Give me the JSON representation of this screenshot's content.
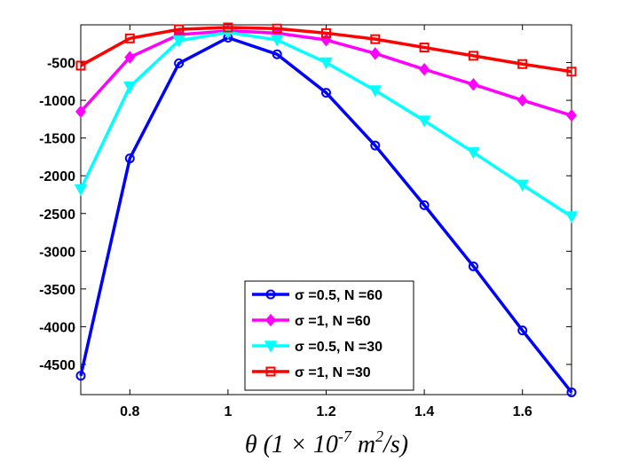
{
  "chart_data": {
    "type": "line",
    "xlabel": "θ (1 × 10",
    "xlabel_exp": "-7",
    "xlabel_mid": " m",
    "xlabel_exp2": "2",
    "xlabel_end": "/s)",
    "xlim": [
      0.7,
      1.7
    ],
    "ylim": [
      -4900,
      0
    ],
    "x_ticks": [
      "0.8",
      "1",
      "1.2",
      "1.4",
      "1.6"
    ],
    "x_tick_values": [
      0.8,
      1.0,
      1.2,
      1.4,
      1.6
    ],
    "y_ticks": [
      "-500",
      "-1000",
      "-1500",
      "-2000",
      "-2500",
      "-3000",
      "-3500",
      "-4000",
      "-4500"
    ],
    "y_tick_values": [
      -500,
      -1000,
      -1500,
      -2000,
      -2500,
      -3000,
      -3500,
      -4000,
      -4500
    ],
    "grid": false,
    "legend_position": "bottom-center",
    "x": [
      0.7,
      0.8,
      0.9,
      1.0,
      1.1,
      1.2,
      1.3,
      1.4,
      1.5,
      1.6,
      1.7
    ],
    "series": [
      {
        "name": "σ =0.5, N =60",
        "color": "#0000ff",
        "marker": "circle",
        "values": [
          -4650,
          -1770,
          -510,
          -170,
          -390,
          -900,
          -1600,
          -2390,
          -3200,
          -4050,
          -4870
        ]
      },
      {
        "name": "σ =1, N =60",
        "color": "#ff00ff",
        "marker": "diamond",
        "values": [
          -1150,
          -430,
          -130,
          -80,
          -110,
          -200,
          -380,
          -590,
          -790,
          -1000,
          -1200
        ]
      },
      {
        "name": "σ =0.5, N =30",
        "color": "#00ffff",
        "marker": "triangle-down",
        "values": [
          -2180,
          -820,
          -210,
          -100,
          -200,
          -500,
          -870,
          -1270,
          -1690,
          -2120,
          -2540
        ]
      },
      {
        "name": "σ =1, N =30",
        "color": "#ff0000",
        "marker": "square",
        "values": [
          -540,
          -180,
          -60,
          -35,
          -50,
          -110,
          -190,
          -300,
          -410,
          -520,
          -620
        ]
      }
    ]
  }
}
